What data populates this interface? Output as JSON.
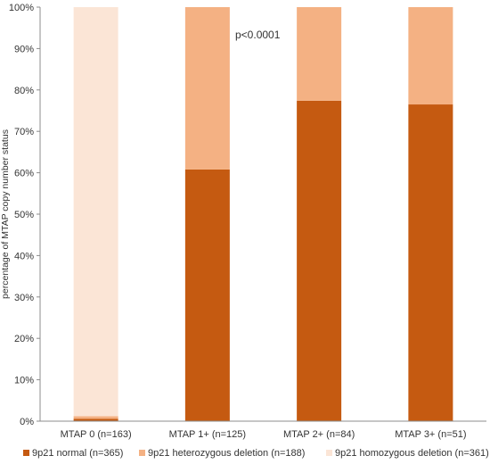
{
  "chart_data": {
    "type": "bar",
    "stacked": true,
    "categories": [
      "MTAP 0 (n=163)",
      "MTAP 1+ (n=125)",
      "MTAP 2+ (n=84)",
      "MTAP 3+ (n=51)"
    ],
    "series": [
      {
        "name": "9p21 normal (n=365)",
        "color": "#c55a11",
        "values": [
          0.6,
          60.8,
          77.4,
          76.5
        ]
      },
      {
        "name": "9p21 heterozygous deletion (n=188)",
        "color": "#f4b183",
        "values": [
          0.6,
          39.2,
          22.6,
          23.5
        ]
      },
      {
        "name": "9p21 homozygous deletion (n=361)",
        "color": "#fbe5d6",
        "values": [
          98.8,
          0,
          0,
          0
        ]
      }
    ],
    "ylabel": "percentage of MTAP copy number status",
    "xlabel": "",
    "ylim": [
      0,
      100
    ],
    "yticks": [
      "0%",
      "10%",
      "20%",
      "30%",
      "40%",
      "50%",
      "60%",
      "70%",
      "80%",
      "90%",
      "100%"
    ],
    "annotation": "p<0.0001",
    "grid": false,
    "legend_position": "bottom"
  }
}
